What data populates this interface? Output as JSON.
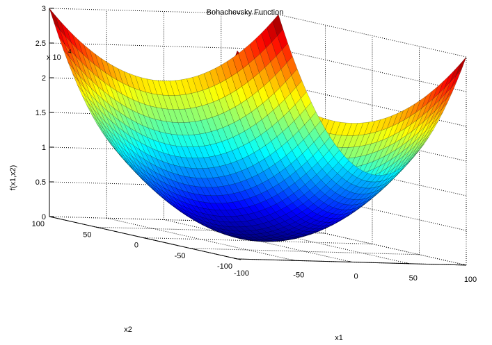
{
  "chart_data": {
    "type": "surface",
    "title": "Bohachevsky Function",
    "xlabel": "x1",
    "ylabel": "x2",
    "zlabel": "f(x1,x2)",
    "z_multiplier_label": "x 10",
    "z_multiplier_exponent": "4",
    "function": "x1^2 + 2*x2^2 - 0.3*cos(3*pi*x1) - 0.4*cos(4*pi*x2) + 0.7",
    "xlim": [
      -100,
      100
    ],
    "ylim": [
      -100,
      100
    ],
    "zlim": [
      0,
      30000
    ],
    "grid": true,
    "colormap": "jet",
    "x_ticks": [
      "-100",
      "-50",
      "0",
      "50",
      "100"
    ],
    "y_ticks": [
      "-100",
      "-50",
      "0",
      "50",
      "100"
    ],
    "z_ticks": [
      "0",
      "0.5",
      "1",
      "1.5",
      "2",
      "2.5",
      "3"
    ],
    "corners": [
      {
        "x1": -100,
        "x2": -100,
        "f": 30000
      },
      {
        "x1": 100,
        "x2": -100,
        "f": 30000
      },
      {
        "x1": -100,
        "x2": 100,
        "f": 30000
      },
      {
        "x1": 100,
        "x2": 100,
        "f": 30000
      }
    ]
  }
}
